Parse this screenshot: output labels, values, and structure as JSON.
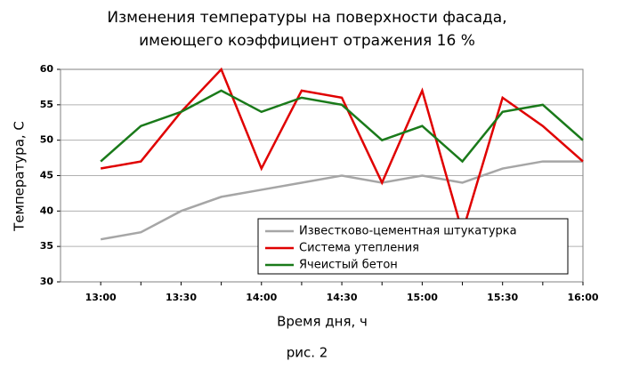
{
  "chart_data": {
    "type": "line",
    "title": [
      "Изменения температуры на поверхности фасада,",
      "имеющего коэффициент отражения 16 %"
    ],
    "x_label": "Время дня, ч",
    "y_label": "Температура, С",
    "caption": "рис. 2",
    "categories": [
      "13:00",
      null,
      "13:30",
      null,
      "14:00",
      null,
      "14:30",
      null,
      "15:00",
      null,
      "15:30",
      null,
      "16:00"
    ],
    "series": [
      {
        "name": "Известково-цементная штукатурка",
        "color": "#a6a6a6",
        "values": [
          36,
          37,
          40,
          42,
          43,
          44,
          45,
          44,
          45,
          44,
          46,
          47,
          47
        ]
      },
      {
        "name": "Система утепления",
        "color": "#e00000",
        "values": [
          46,
          47,
          54,
          60,
          46,
          57,
          56,
          44,
          57,
          37,
          56,
          52,
          47
        ]
      },
      {
        "name": "Ячеистый бетон",
        "color": "#1a7a1a",
        "values": [
          47,
          52,
          54,
          57,
          54,
          56,
          55,
          50,
          52,
          47,
          54,
          55,
          50
        ]
      }
    ],
    "ylim": [
      30,
      60
    ],
    "yticks": [
      30,
      35,
      40,
      45,
      50,
      55,
      60
    ],
    "grid": true
  }
}
